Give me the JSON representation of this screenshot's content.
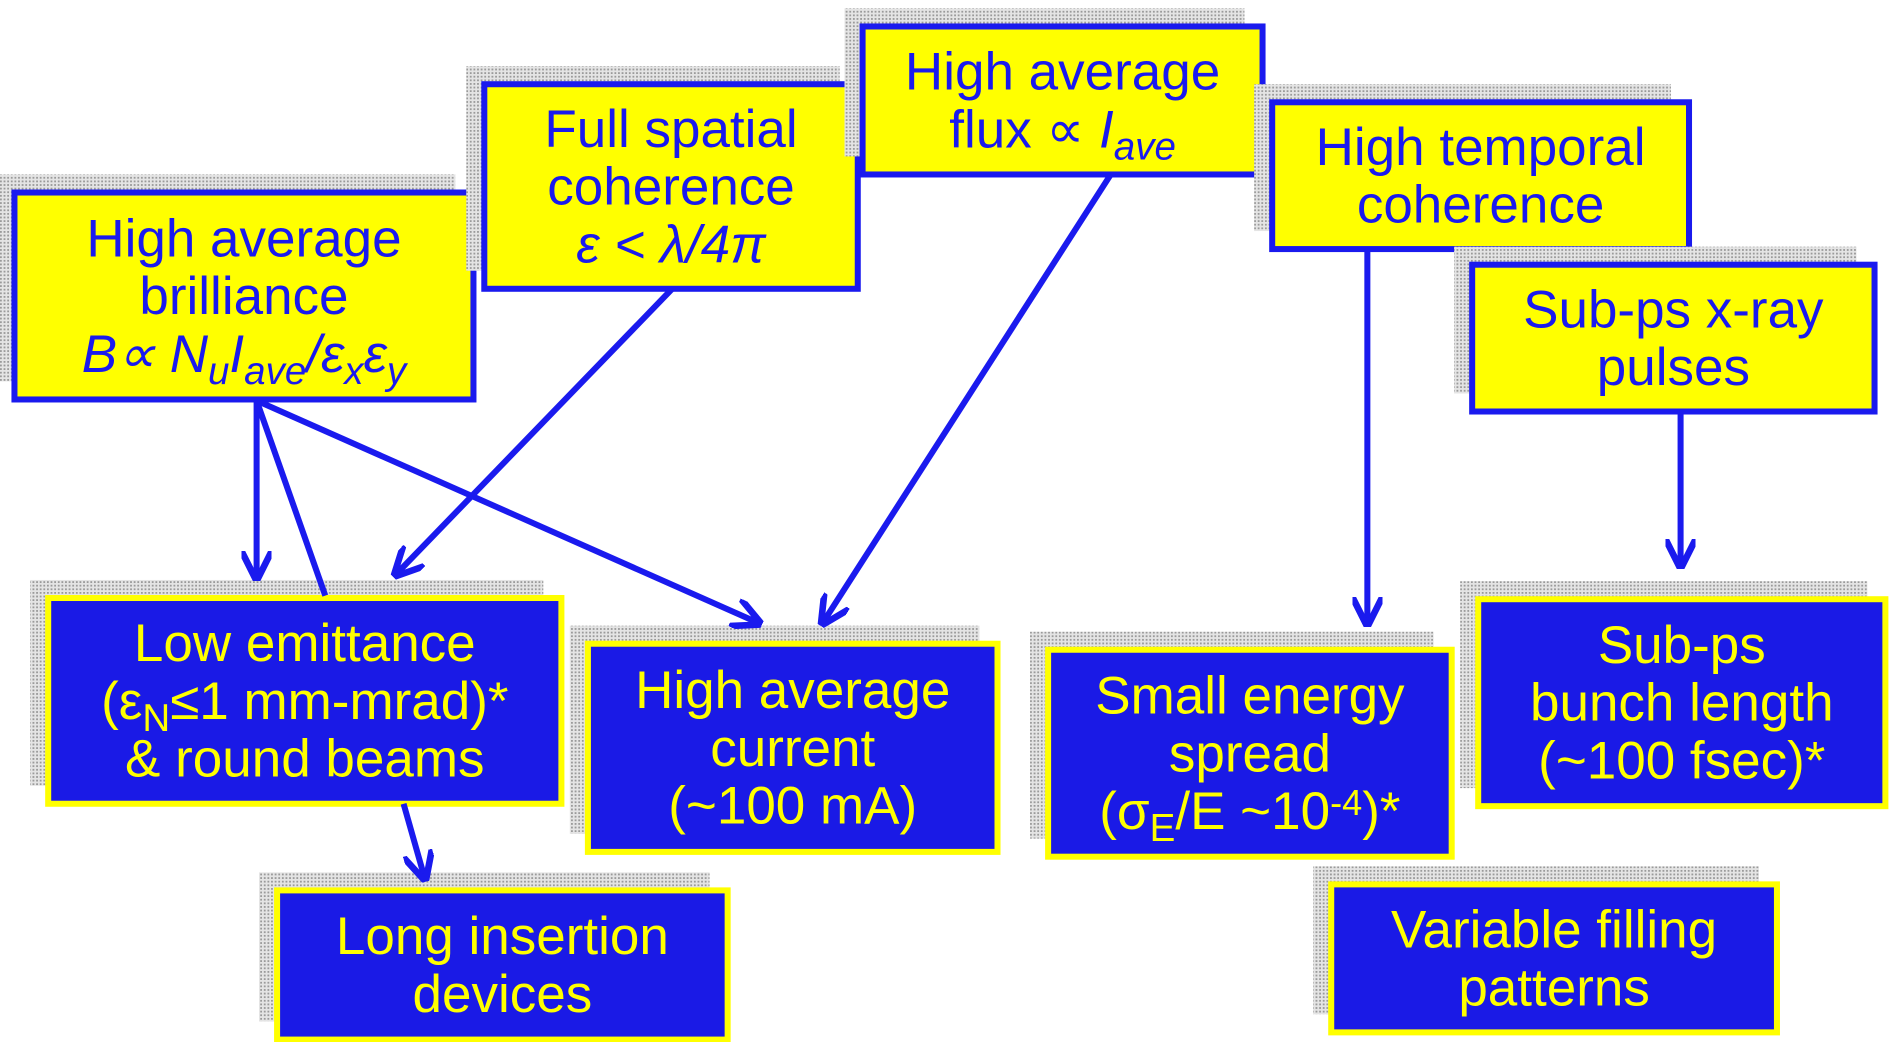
{
  "nodes": [
    {
      "kind": "yellow",
      "lines": [
        [
          {
            "text": "High average"
          }
        ],
        [
          {
            "text": "brilliance"
          }
        ],
        [
          {
            "text": "B∝ N",
            "style": "it"
          },
          {
            "text": "u",
            "style": "sub"
          },
          {
            "text": "I",
            "style": "it"
          },
          {
            "text": "ave",
            "style": "sub"
          },
          {
            "text": "/ε",
            "style": "it"
          },
          {
            "text": "x",
            "style": "sub"
          },
          {
            "text": "ε",
            "style": "it"
          },
          {
            "text": "y",
            "style": "sub"
          }
        ]
      ]
    },
    {
      "kind": "yellow",
      "lines": [
        [
          {
            "text": "Full spatial"
          }
        ],
        [
          {
            "text": "coherence"
          }
        ],
        [
          {
            "text": "ε < λ/4π",
            "style": "it"
          }
        ]
      ]
    },
    {
      "kind": "yellow",
      "lines": [
        [
          {
            "text": "High average"
          }
        ],
        [
          {
            "text": "flux ∝ "
          },
          {
            "text": "I",
            "style": "it"
          },
          {
            "text": "ave",
            "style": "sub"
          }
        ]
      ]
    },
    {
      "kind": "yellow",
      "lines": [
        [
          {
            "text": "High temporal"
          }
        ],
        [
          {
            "text": "coherence"
          }
        ]
      ]
    },
    {
      "kind": "yellow",
      "lines": [
        [
          {
            "text": "Sub-ps x-ray"
          }
        ],
        [
          {
            "text": "pulses"
          }
        ]
      ]
    },
    {
      "kind": "blue",
      "lines": [
        [
          {
            "text": "Low emittance"
          }
        ],
        [
          {
            "text": "(ε"
          },
          {
            "text": "N",
            "style": "sub"
          },
          {
            "text": "≤1 mm-mrad)*"
          }
        ],
        [
          {
            "text": "& round beams"
          }
        ]
      ]
    },
    {
      "kind": "blue",
      "lines": [
        [
          {
            "text": "High average"
          }
        ],
        [
          {
            "text": "current"
          }
        ],
        [
          {
            "text": "(~100 mA)"
          }
        ]
      ]
    },
    {
      "kind": "blue",
      "lines": [
        [
          {
            "text": "Small energy"
          }
        ],
        [
          {
            "text": "spread"
          }
        ],
        [
          {
            "text": "(σ"
          },
          {
            "text": "E",
            "style": "sub"
          },
          {
            "text": "/E ~10"
          },
          {
            "text": "-4",
            "style": "sup"
          },
          {
            "text": ")*"
          }
        ]
      ]
    },
    {
      "kind": "blue",
      "lines": [
        [
          {
            "text": "Sub-ps"
          }
        ],
        [
          {
            "text": "bunch length"
          }
        ],
        [
          {
            "text": "(~100 fsec)*"
          }
        ]
      ]
    },
    {
      "kind": "blue",
      "lines": [
        [
          {
            "text": "Long insertion"
          }
        ],
        [
          {
            "text": "devices"
          }
        ]
      ]
    },
    {
      "kind": "blue",
      "lines": [
        [
          {
            "text": "Variable filling"
          }
        ],
        [
          {
            "text": "patterns"
          }
        ]
      ]
    }
  ]
}
